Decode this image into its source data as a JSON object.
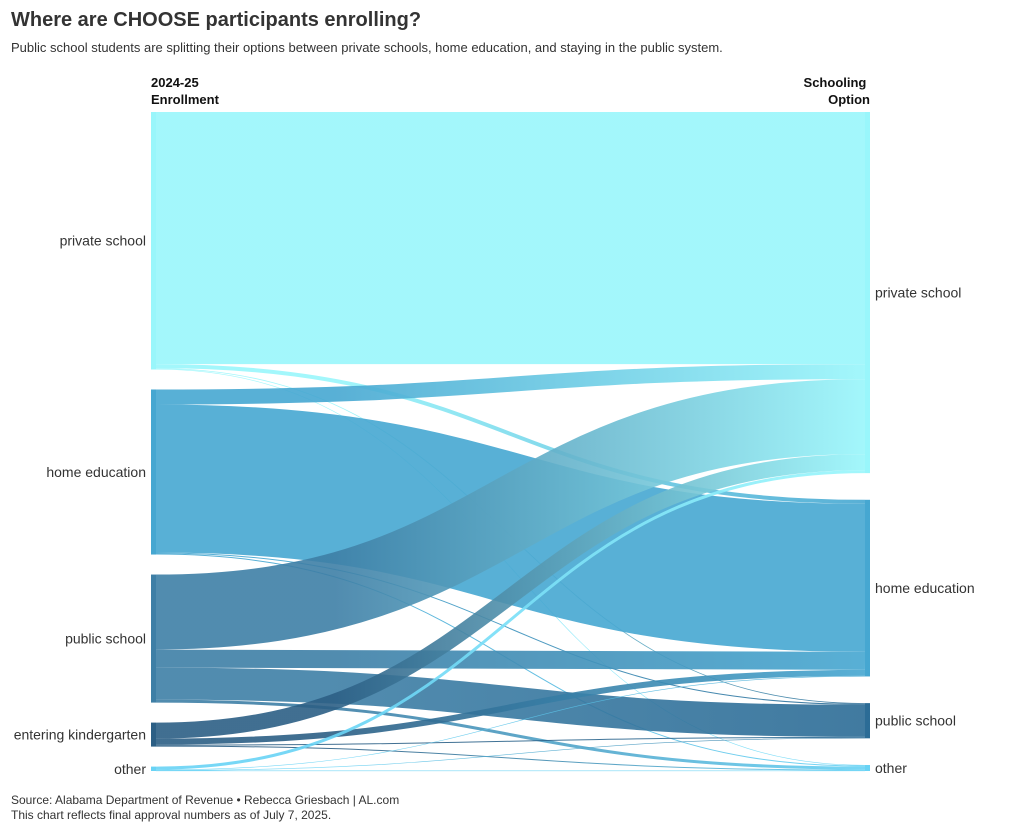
{
  "title": "Where are CHOOSE participants enrolling?",
  "subtitle": "Public school students are splitting their options between private schools, home education, and staying in the public system.",
  "source_line1": "Source: Alabama Department of Revenue • Rebecca Griesbach | AL.com",
  "source_line2": "This chart reflects final approval numbers as of July 7, 2025.",
  "chart_data": {
    "type": "sankey",
    "left_header": [
      "2024-25",
      "Enrollment"
    ],
    "right_header": [
      "Schooling",
      "Option"
    ],
    "left_nodes": [
      {
        "id": "ps_l",
        "label": "private school",
        "color": "#99f6fb"
      },
      {
        "id": "he_l",
        "label": "home education",
        "color": "#46a7d1"
      },
      {
        "id": "pub_l",
        "label": "public school",
        "color": "#3e7fa6"
      },
      {
        "id": "k_l",
        "label": "entering kindergarten",
        "color": "#2c5f85"
      },
      {
        "id": "o_l",
        "label": "other",
        "color": "#68d3f5"
      }
    ],
    "right_nodes": [
      {
        "id": "ps_r",
        "label": "private school",
        "color": "#99f6fb"
      },
      {
        "id": "he_r",
        "label": "home education",
        "color": "#46a7d1"
      },
      {
        "id": "pub_r",
        "label": "public school",
        "color": "#2c6c96"
      },
      {
        "id": "o_r",
        "label": "other",
        "color": "#68d3f5"
      }
    ],
    "links": [
      {
        "source": "ps_l",
        "target": "ps_r",
        "value": 252
      },
      {
        "source": "ps_l",
        "target": "he_r",
        "value": 4
      },
      {
        "source": "ps_l",
        "target": "pub_r",
        "value": 0.8
      },
      {
        "source": "ps_l",
        "target": "o_r",
        "value": 0.6
      },
      {
        "source": "he_l",
        "target": "ps_r",
        "value": 15
      },
      {
        "source": "he_l",
        "target": "he_r",
        "value": 148
      },
      {
        "source": "he_l",
        "target": "pub_r",
        "value": 1
      },
      {
        "source": "he_l",
        "target": "o_r",
        "value": 1
      },
      {
        "source": "pub_l",
        "target": "ps_r",
        "value": 75
      },
      {
        "source": "pub_l",
        "target": "he_r",
        "value": 18
      },
      {
        "source": "pub_l",
        "target": "pub_r",
        "value": 32
      },
      {
        "source": "pub_l",
        "target": "o_r",
        "value": 3
      },
      {
        "source": "k_l",
        "target": "ps_r",
        "value": 16
      },
      {
        "source": "k_l",
        "target": "he_r",
        "value": 6
      },
      {
        "source": "k_l",
        "target": "pub_r",
        "value": 1
      },
      {
        "source": "k_l",
        "target": "o_r",
        "value": 1
      },
      {
        "source": "o_l",
        "target": "ps_r",
        "value": 3
      },
      {
        "source": "o_l",
        "target": "he_r",
        "value": 0.6
      },
      {
        "source": "o_l",
        "target": "pub_r",
        "value": 0.4
      },
      {
        "source": "o_l",
        "target": "o_r",
        "value": 0.4
      }
    ]
  }
}
